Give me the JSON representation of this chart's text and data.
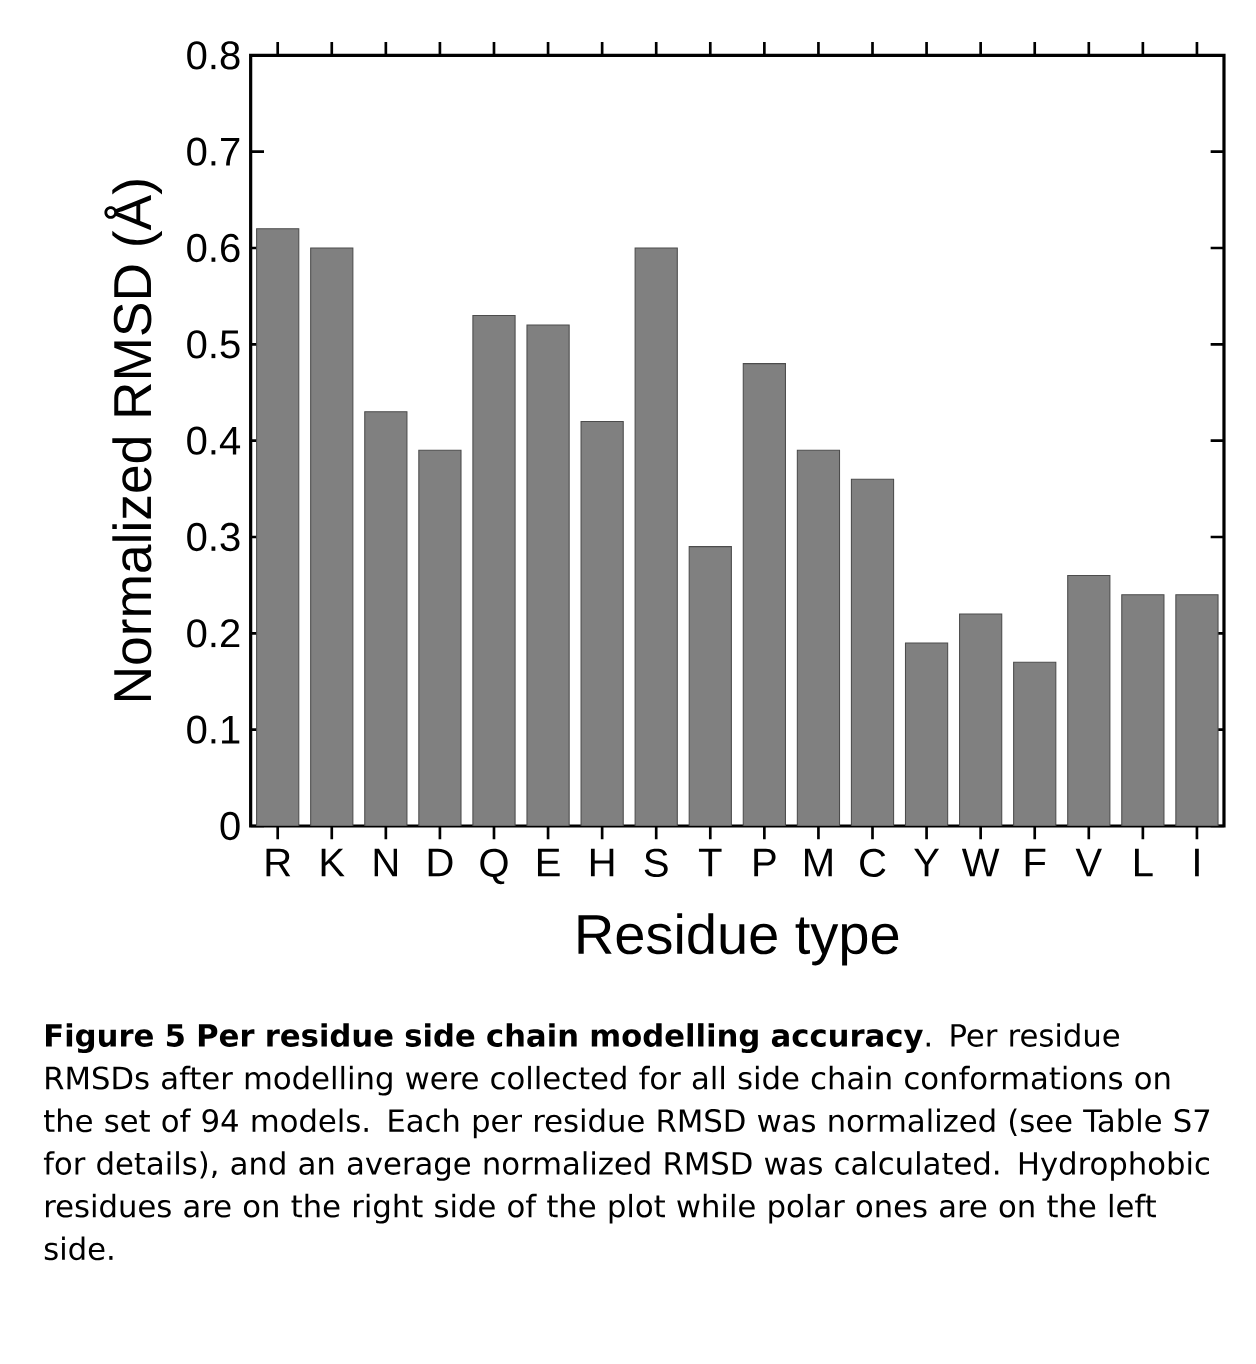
{
  "chart_data": {
    "type": "bar",
    "xlabel": "Residue type",
    "ylabel": "Normalized RMSD (Å)",
    "categories": [
      "R",
      "K",
      "N",
      "D",
      "Q",
      "E",
      "H",
      "S",
      "T",
      "P",
      "M",
      "C",
      "Y",
      "W",
      "F",
      "V",
      "L",
      "I"
    ],
    "values": [
      0.62,
      0.6,
      0.43,
      0.39,
      0.53,
      0.52,
      0.42,
      0.6,
      0.29,
      0.48,
      0.39,
      0.36,
      0.19,
      0.22,
      0.17,
      0.26,
      0.24,
      0.24
    ],
    "color": "#808080",
    "ylim": [
      0,
      0.8
    ],
    "yticks": [
      0,
      0.1,
      0.2,
      0.3,
      0.4,
      0.5,
      0.6,
      0.7,
      0.8
    ],
    "annotations": [
      "**Figure 5 Per residue side chain modelling accuracy**. Per residue RMSDs after modelling were collected for all side chain conformations on the set of 94 models. Each per residue RMSD was normalized (see Table S7 for details), and an average normalized RMSD was calculated. Hydrophobic residues are on the right side of the plot while polar ones are on the left side."
    ]
  }
}
